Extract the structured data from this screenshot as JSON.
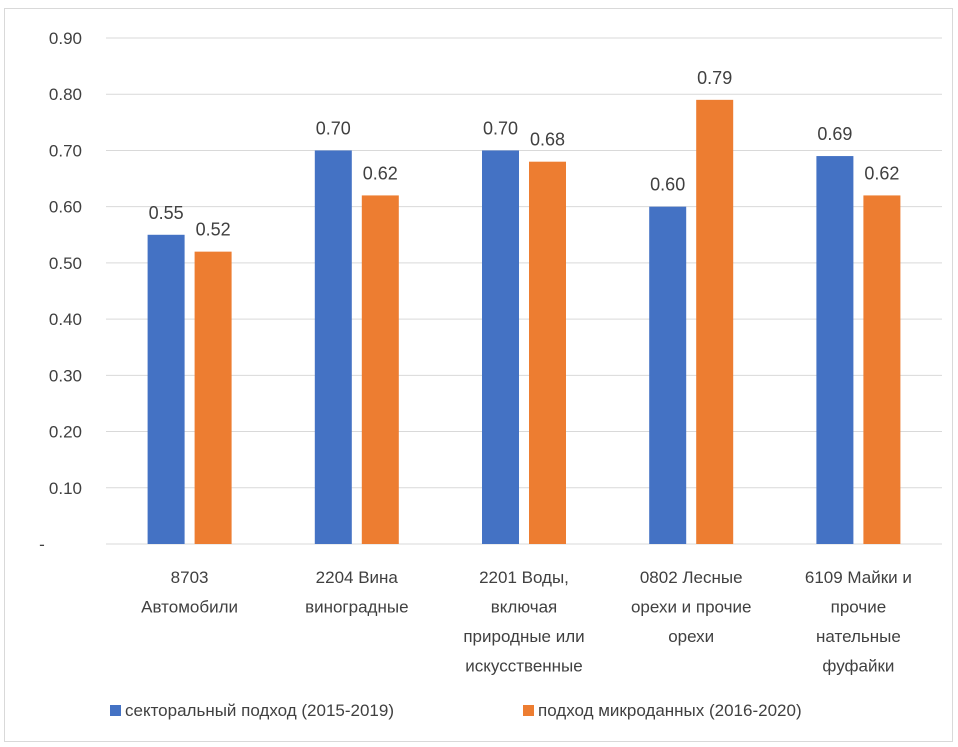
{
  "chart_data": {
    "type": "bar",
    "categories": [
      [
        "8703",
        "Автомобили"
      ],
      [
        "2204 Вина",
        "виноградные"
      ],
      [
        "2201 Воды,",
        "включая",
        "природные или",
        "искусственные"
      ],
      [
        "0802 Лесные",
        "орехи и прочие",
        "орехи"
      ],
      [
        "6109 Майки и",
        "прочие",
        "нательные",
        "фуфайки"
      ]
    ],
    "series": [
      {
        "name": "секторальный подход (2015-2019)",
        "color": "#4472c4",
        "values": [
          0.55,
          0.7,
          0.7,
          0.6,
          0.69
        ],
        "labels": [
          "0.55",
          "0.70",
          "0.70",
          "0.60",
          "0.69"
        ]
      },
      {
        "name": "подход микроданных (2016-2020)",
        "color": "#ed7d31",
        "values": [
          0.52,
          0.62,
          0.68,
          0.79,
          0.62
        ],
        "labels": [
          "0.52",
          "0.62",
          "0.68",
          "0.79",
          "0.62"
        ]
      }
    ],
    "yticks": [
      {
        "value": 0,
        "label": "-"
      },
      {
        "value": 0.1,
        "label": "0.10"
      },
      {
        "value": 0.2,
        "label": "0.20"
      },
      {
        "value": 0.3,
        "label": "0.30"
      },
      {
        "value": 0.4,
        "label": "0.40"
      },
      {
        "value": 0.5,
        "label": "0.50"
      },
      {
        "value": 0.6,
        "label": "0.60"
      },
      {
        "value": 0.7,
        "label": "0.70"
      },
      {
        "value": 0.8,
        "label": "0.80"
      },
      {
        "value": 0.9,
        "label": "0.90"
      }
    ],
    "ylim": [
      0,
      0.9
    ],
    "grid": true,
    "legend_position": "bottom",
    "title": "",
    "xlabel": "",
    "ylabel": ""
  }
}
